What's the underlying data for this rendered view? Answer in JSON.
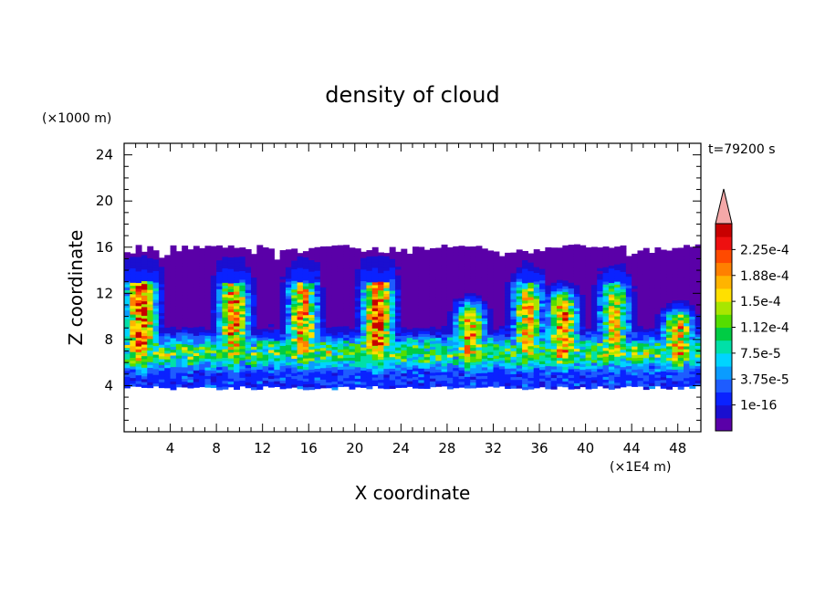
{
  "chart_data": {
    "type": "heatmap",
    "title": "density of cloud",
    "xlabel": "X coordinate",
    "ylabel": "Z coordinate",
    "x_unit": "(×1E4 m)",
    "y_unit": "(×1000 m)",
    "time_label": "t=79200 s",
    "xlim": [
      0,
      50
    ],
    "ylim": [
      0,
      25
    ],
    "x_ticks": [
      4,
      8,
      12,
      16,
      20,
      24,
      28,
      32,
      36,
      40,
      44,
      48
    ],
    "y_ticks": [
      4,
      8,
      12,
      16,
      20,
      24
    ],
    "cloud_base": 4,
    "cloud_top": 16,
    "convective_cores": [
      {
        "x": 1.5,
        "top": 13.5,
        "peak": 0.00023
      },
      {
        "x": 9.5,
        "top": 13.0,
        "peak": 0.0002
      },
      {
        "x": 15.5,
        "top": 13.0,
        "peak": 0.00019
      },
      {
        "x": 22.0,
        "top": 13.5,
        "peak": 0.000225
      },
      {
        "x": 30.0,
        "top": 10.0,
        "peak": 0.00019
      },
      {
        "x": 35.0,
        "top": 12.5,
        "peak": 0.00018
      },
      {
        "x": 38.0,
        "top": 11.0,
        "peak": 0.00021
      },
      {
        "x": 42.5,
        "top": 12.5,
        "peak": 0.00017
      },
      {
        "x": 48.0,
        "top": 9.5,
        "peak": 0.00019
      }
    ],
    "colorbar": {
      "labels": [
        "2.25e-4",
        "1.88e-4",
        "1.5e-4",
        "1.12e-4",
        "7.5e-5",
        "3.75e-5",
        "1e-16"
      ],
      "colors": [
        "#5a00a8",
        "#1a0fd0",
        "#0a22ff",
        "#1e5cff",
        "#0a9cff",
        "#00d4ff",
        "#00e0a8",
        "#00cc44",
        "#55dd00",
        "#a8e600",
        "#ffe000",
        "#ffb400",
        "#ff8000",
        "#ff4a00",
        "#ee1010",
        "#c80000"
      ],
      "over_color": "#f4a8a8"
    }
  }
}
